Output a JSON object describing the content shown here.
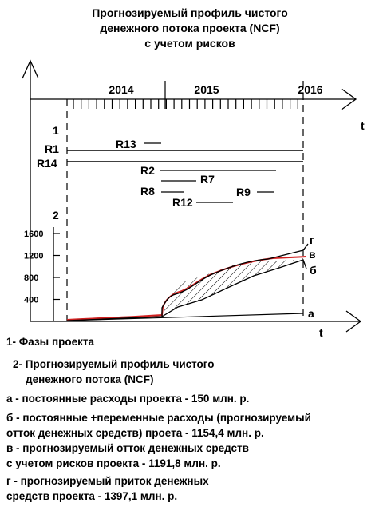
{
  "title": {
    "line1": "Прогнозируемый профиль чистого",
    "line2": "денежного потока проекта (NCF)",
    "line3": "с учетом рисков"
  },
  "time_axis": {
    "years": [
      "2014",
      "2015",
      "2016"
    ],
    "axis_label": "t"
  },
  "phases": {
    "row_label": "1",
    "risks": [
      {
        "label": "R1"
      },
      {
        "label": "R14"
      },
      {
        "label": "R13"
      },
      {
        "label": "R2"
      },
      {
        "label": "R7"
      },
      {
        "label": "R8"
      },
      {
        "label": "R9"
      },
      {
        "label": "R12"
      }
    ]
  },
  "chart_data": {
    "type": "area",
    "row_label": "2",
    "xlabel": "t",
    "ylabel": "",
    "yticks": [
      400,
      800,
      1200,
      1600
    ],
    "ylim": [
      0,
      1700
    ],
    "series": [
      {
        "name": "а",
        "color": "#000000",
        "description_ref": "legend.a"
      },
      {
        "name": "б",
        "color": "#000000",
        "description_ref": "legend.b"
      },
      {
        "name": "в",
        "color": "#d02020",
        "description_ref": "legend.v"
      },
      {
        "name": "г",
        "color": "#000000",
        "description_ref": "legend.g"
      }
    ]
  },
  "legend": {
    "item1": "1- Фазы проекта",
    "item2_line1": "2- Прогнозируемый профиль чистого",
    "item2_line2": "денежного потока (NCF)",
    "a": "а - постоянные расходы проекта - 150 млн. р.",
    "b_line1": "б - постоянные +переменные расходы (прогнозируемый",
    "b_line2": "отток денежных средств) проета - 1154,4 млн. р.",
    "v_line1": "в - прогнозируемый отток денежных средств",
    "v_line2": "с учетом рисков проекта - 1191,8 млн. р.",
    "g_line1": "г - прогнозируемый приток денежных",
    "g_line2": "средств проекта - 1397,1 млн. р."
  },
  "colors": {
    "ink": "#000000",
    "risk_curve": "#d02020"
  }
}
